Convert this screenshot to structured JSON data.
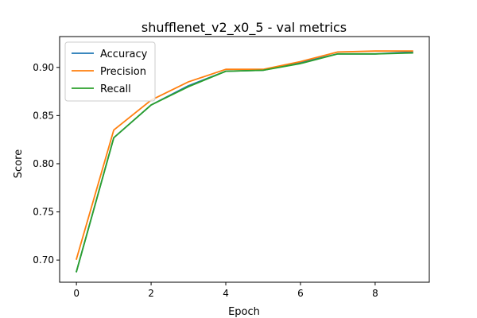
{
  "chart_data": {
    "type": "line",
    "title": "shufflenet_v2_x0_5 - val metrics",
    "xlabel": "Epoch",
    "ylabel": "Score",
    "xlim": [
      -0.45,
      9.45
    ],
    "ylim": [
      0.677,
      0.932
    ],
    "xticks": [
      0,
      2,
      4,
      6,
      8
    ],
    "yticks": [
      0.7,
      0.75,
      0.8,
      0.85,
      0.9
    ],
    "ytick_labels": [
      "0.70",
      "0.75",
      "0.80",
      "0.85",
      "0.90"
    ],
    "grid": false,
    "legend_position": "top-left",
    "x": [
      0,
      1,
      2,
      3,
      4,
      5,
      6,
      7,
      8,
      9
    ],
    "series": [
      {
        "name": "Accuracy",
        "color": "#1f77b4",
        "values": [
          0.688,
          0.827,
          0.861,
          0.881,
          0.896,
          0.897,
          0.905,
          0.914,
          0.914,
          0.916
        ]
      },
      {
        "name": "Precision",
        "color": "#ff7f0e",
        "values": [
          0.701,
          0.835,
          0.866,
          0.885,
          0.898,
          0.898,
          0.906,
          0.916,
          0.917,
          0.917
        ]
      },
      {
        "name": "Recall",
        "color": "#2ca02c",
        "values": [
          0.688,
          0.827,
          0.861,
          0.88,
          0.896,
          0.897,
          0.904,
          0.914,
          0.914,
          0.915
        ]
      }
    ]
  }
}
